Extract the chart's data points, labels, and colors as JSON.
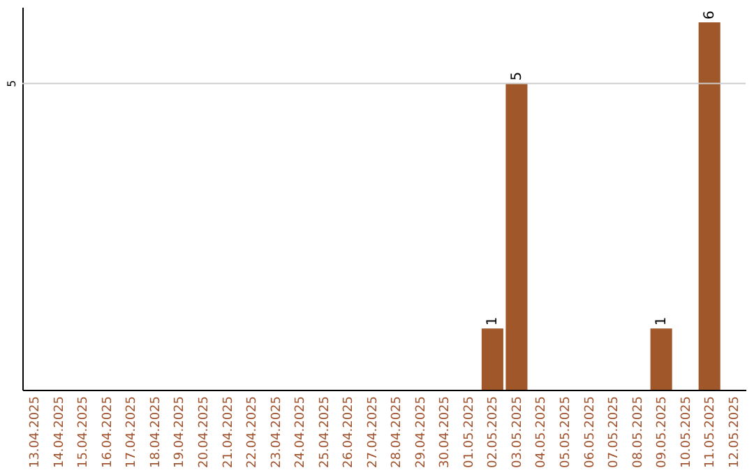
{
  "chart_data": {
    "type": "bar",
    "categories": [
      "13.04.2025",
      "14.04.2025",
      "15.04.2025",
      "16.04.2025",
      "17.04.2025",
      "18.04.2025",
      "19.04.2025",
      "20.04.2025",
      "21.04.2025",
      "22.04.2025",
      "23.04.2025",
      "24.04.2025",
      "25.04.2025",
      "26.04.2025",
      "27.04.2025",
      "28.04.2025",
      "29.04.2025",
      "30.04.2025",
      "01.05.2025",
      "02.05.2025",
      "03.05.2025",
      "04.05.2025",
      "05.05.2025",
      "06.05.2025",
      "07.05.2025",
      "08.05.2025",
      "09.05.2025",
      "10.05.2025",
      "11.05.2025",
      "12.05.2025"
    ],
    "values": [
      null,
      null,
      null,
      null,
      null,
      null,
      null,
      null,
      null,
      null,
      null,
      null,
      null,
      null,
      null,
      null,
      null,
      null,
      null,
      1,
      5,
      null,
      null,
      null,
      null,
      null,
      1,
      null,
      6,
      null
    ],
    "data_labels": true,
    "color": "#a0582a",
    "ylim": [
      0,
      6.25
    ],
    "ref_lines": [
      {
        "axis": "y",
        "value": 5,
        "label": "5",
        "color": "#cccccc"
      }
    ]
  }
}
